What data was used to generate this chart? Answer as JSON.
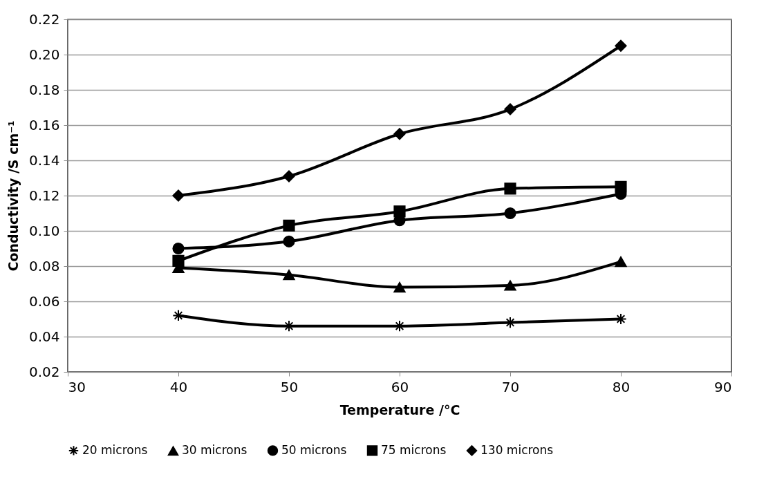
{
  "chart_data": {
    "type": "line",
    "xlabel": "Temperature /°C",
    "ylabel": "Conductivity /S cm⁻¹",
    "x": [
      40,
      50,
      60,
      70,
      80
    ],
    "series": [
      {
        "name": "20 microns",
        "color": "#000000",
        "marker": "cross",
        "values": [
          0.052,
          0.046,
          0.046,
          0.048,
          0.05
        ]
      },
      {
        "name": "30 microns",
        "color": "#000000",
        "marker": "triangle",
        "values": [
          0.079,
          0.075,
          0.068,
          0.069,
          0.0825
        ]
      },
      {
        "name": "50 microns",
        "color": "#000000",
        "marker": "circle",
        "values": [
          0.09,
          0.094,
          0.106,
          0.11,
          0.121
        ]
      },
      {
        "name": "75 microns",
        "color": "#000000",
        "marker": "square",
        "values": [
          0.083,
          0.103,
          0.111,
          0.124,
          0.125
        ]
      },
      {
        "name": "130 microns",
        "color": "#000000",
        "marker": "diamond",
        "values": [
          0.12,
          0.131,
          0.155,
          0.169,
          0.205
        ]
      }
    ],
    "xlim": [
      30,
      90
    ],
    "xticks": [
      30,
      40,
      50,
      60,
      70,
      80,
      90
    ],
    "ylim": [
      0.02,
      0.22
    ],
    "yticks": [
      0.02,
      0.04,
      0.06,
      0.08,
      {
        "value": 0.1,
        "label": "0.10"
      },
      0.12,
      0.14,
      0.16,
      0.18,
      {
        "value": 0.2,
        "label": "0.20"
      },
      0.22
    ],
    "grid": "y",
    "legend": "bottom",
    "line_style": "solid"
  }
}
